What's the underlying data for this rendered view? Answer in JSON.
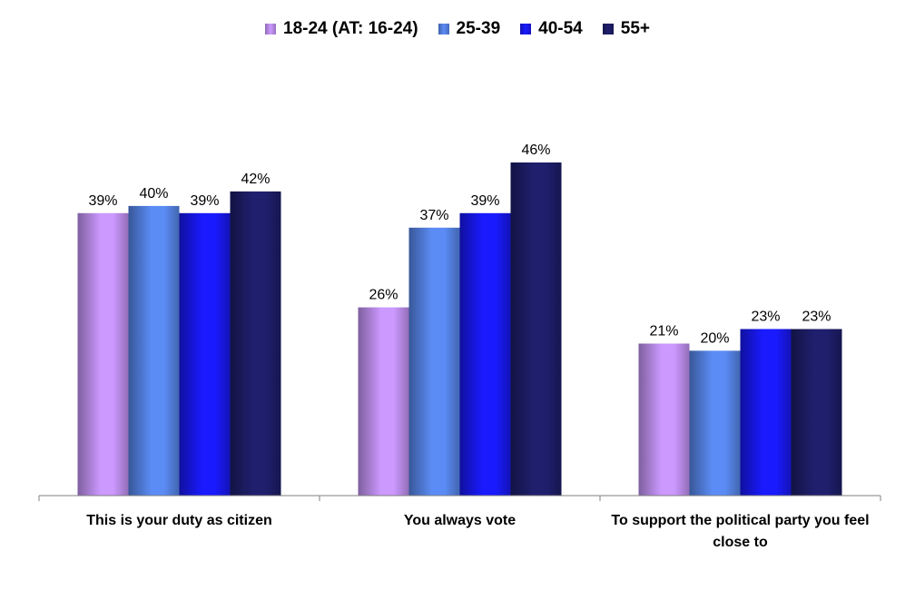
{
  "chart_data": {
    "type": "bar",
    "categories": [
      "This is your duty as citizen",
      "You always vote",
      "To support the political party you feel close to"
    ],
    "series": [
      {
        "name": "18-24 (AT: 16-24)",
        "values": [
          39,
          26,
          21
        ],
        "color": "#cc99ff",
        "labels": [
          "39%",
          "26%",
          "21%"
        ]
      },
      {
        "name": "25-39",
        "values": [
          40,
          37,
          20
        ],
        "color": "#5b8cf5",
        "labels": [
          "40%",
          "37%",
          "20%"
        ]
      },
      {
        "name": "40-54",
        "values": [
          39,
          39,
          23
        ],
        "color": "#1a1aff",
        "labels": [
          "39%",
          "39%",
          "23%"
        ]
      },
      {
        "name": "55+",
        "values": [
          42,
          46,
          23
        ],
        "color": "#1f1f6e",
        "labels": [
          "42%",
          "46%",
          "23%"
        ]
      }
    ],
    "ylim": [
      0,
      50
    ],
    "grid": false,
    "legend": "top-center",
    "xlabel": "",
    "ylabel": ""
  }
}
